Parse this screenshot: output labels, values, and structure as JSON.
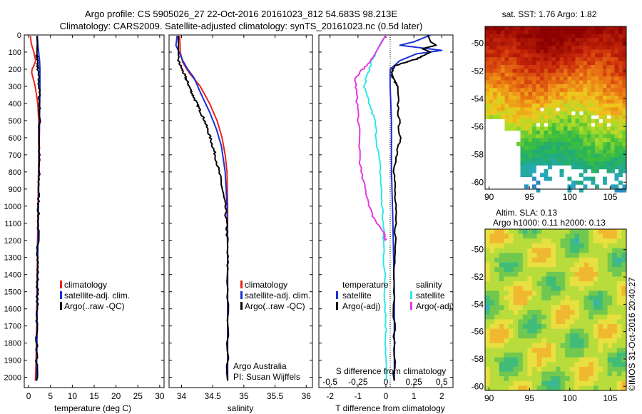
{
  "header": {
    "line1": "Argo profile: CS 5905026_27 22-Oct-2016 20161023_812 54.683S 98.213E",
    "line2": "Climatology: CARS2009. Satellite-adjusted climatology: synTS_20161023.nc (0.5d later)"
  },
  "colors": {
    "climatology": "#e8251b",
    "satellite": "#1c2fd6",
    "argo": "#000000",
    "sal_satellite": "#2ee8e8",
    "sal_argo": "#e638e6"
  },
  "chart_data": [
    {
      "type": "line",
      "panel": "temperature",
      "xlabel": "temperature (deg C)",
      "xlim": [
        -1,
        31
      ],
      "xticks": [
        0,
        5,
        10,
        15,
        20,
        25,
        30
      ],
      "ylim": [
        2060,
        0
      ],
      "yticks": [
        0,
        100,
        200,
        300,
        400,
        500,
        600,
        700,
        800,
        900,
        1000,
        1100,
        1200,
        1300,
        1400,
        1500,
        1600,
        1700,
        1800,
        1900,
        2000
      ],
      "legend": [
        "climatology",
        "satellite-adj. clim.",
        "Argo(..raw -QC)"
      ],
      "series": [
        {
          "name": "climatology",
          "color": "#e8251b",
          "x": [
            0.4,
            0.6,
            1.2,
            1.6,
            1.2,
            0.8,
            0.7,
            1.0,
            1.5,
            2.1,
            2.3,
            2.3,
            2.2,
            2.1,
            2.0,
            1.9,
            1.85,
            1.75,
            1.65,
            1.55
          ],
          "y": [
            5,
            50,
            100,
            150,
            180,
            200,
            220,
            250,
            300,
            400,
            500,
            700,
            900,
            1100,
            1300,
            1500,
            1700,
            1850,
            1950,
            2020
          ]
        },
        {
          "name": "satellite-adj. clim.",
          "color": "#1c2fd6",
          "x": [
            2.0,
            2.1,
            2.3,
            2.5,
            2.6,
            2.6,
            2.5,
            2.4,
            2.3,
            2.2,
            2.1,
            2.0,
            1.95,
            1.8
          ],
          "y": [
            5,
            50,
            100,
            150,
            200,
            300,
            500,
            700,
            900,
            1100,
            1300,
            1500,
            1700,
            2020
          ]
        },
        {
          "name": "Argo(..raw -QC)",
          "color": "#000000",
          "x": [
            1.9,
            2.0,
            1.9,
            2.0,
            2.1,
            2.4,
            2.5,
            2.4,
            2.3,
            2.2,
            2.1,
            2.0,
            1.9,
            1.8
          ],
          "y": [
            5,
            50,
            100,
            150,
            200,
            300,
            450,
            700,
            900,
            1100,
            1300,
            1500,
            1700,
            2020
          ]
        }
      ]
    },
    {
      "type": "line",
      "panel": "salinity",
      "xlabel": "salinity",
      "xlim": [
        33.8,
        36.1
      ],
      "xticks": [
        34,
        34.5,
        35,
        35.5,
        36
      ],
      "xtick_labels": [
        "34",
        "34.5",
        "35",
        "35.5",
        "36"
      ],
      "ylim": [
        2060,
        0
      ],
      "legend": [
        "climatology",
        "satellite-adj. clim.",
        "Argo(..raw -QC)"
      ],
      "annotation": [
        "Argo Australia",
        "PI: Susan Wijffels"
      ],
      "series": [
        {
          "name": "climatology",
          "color": "#e8251b",
          "x": [
            33.97,
            33.98,
            34.02,
            34.12,
            34.3,
            34.45,
            34.57,
            34.65,
            34.7,
            34.73,
            34.74,
            34.74,
            34.74,
            34.74
          ],
          "y": [
            5,
            100,
            160,
            220,
            300,
            400,
            500,
            600,
            700,
            800,
            1000,
            1300,
            1700,
            2020
          ]
        },
        {
          "name": "satellite-adj. clim.",
          "color": "#1c2fd6",
          "x": [
            33.93,
            33.91,
            33.96,
            34.02,
            34.1,
            34.2,
            34.32,
            34.45,
            34.56,
            34.64,
            34.7,
            34.73,
            34.74,
            34.74,
            34.74
          ],
          "y": [
            5,
            60,
            100,
            150,
            200,
            250,
            350,
            450,
            550,
            650,
            800,
            1000,
            1300,
            1700,
            2020
          ]
        },
        {
          "name": "Argo(..raw -QC)",
          "color": "#000000",
          "x": [
            33.95,
            33.95,
            34.03,
            34.1,
            34.18,
            34.27,
            34.37,
            34.46,
            34.54,
            34.63,
            34.7,
            34.73,
            34.74,
            34.74
          ],
          "y": [
            5,
            150,
            220,
            280,
            350,
            420,
            500,
            600,
            700,
            850,
            1000,
            1150,
            1400,
            2020
          ]
        }
      ]
    },
    {
      "type": "line",
      "panel": "difference",
      "xlabel": "T difference from climatology",
      "xlabel_top": "S difference from climatology",
      "xlim": [
        -2.4,
        2.4
      ],
      "xticks": [
        -2,
        -1,
        0,
        1,
        2
      ],
      "sal_xticks": [
        -0.5,
        -0.25,
        0,
        0.25,
        0.5
      ],
      "sal_xtick_labels": [
        "-0.5",
        "-0.25",
        "0",
        "0.25",
        "0.5"
      ],
      "ylim": [
        2060,
        0
      ],
      "legend_temperature": {
        "title": "temperature",
        "entries": [
          "satellite",
          "Argo(-adj)"
        ]
      },
      "legend_salinity": {
        "title": "salinity",
        "entries": [
          "satellite",
          "Argo(-adj)"
        ]
      },
      "series": [
        {
          "name": "temperature satellite",
          "color": "#1c2fd6",
          "x": [
            1.6,
            1.0,
            0.5,
            1.0,
            2.0,
            1.1,
            0.5,
            0.15,
            0.15,
            0.2,
            0.2,
            0.25,
            0.3,
            0.3
          ],
          "y": [
            0,
            40,
            60,
            70,
            90,
            110,
            150,
            200,
            300,
            500,
            800,
            1100,
            1500,
            2020
          ]
        },
        {
          "name": "temperature Argo(-adj)",
          "color": "#000000",
          "x": [
            1.5,
            1.6,
            1.8,
            1.3,
            1.6,
            1.1,
            0.3,
            0.2,
            0.4,
            0.5,
            0.3,
            0.35,
            0.3,
            0.3
          ],
          "y": [
            0,
            40,
            60,
            80,
            100,
            140,
            180,
            230,
            300,
            600,
            800,
            1100,
            1500,
            2020
          ]
        },
        {
          "name": "salinity satellite",
          "color": "#2ee8e8",
          "x": [
            0.0,
            -0.2,
            -0.5,
            -0.8,
            -0.4,
            -0.2,
            -0.1,
            -0.05,
            0.0,
            0.0
          ],
          "y": [
            0,
            50,
            150,
            300,
            500,
            800,
            1100,
            1400,
            1700,
            2020
          ]
        },
        {
          "name": "salinity Argo(-adj)",
          "color": "#e638e6",
          "x": [
            0.0,
            -0.5,
            -1.1,
            -1.0,
            -0.9,
            -0.5,
            -0.1,
            0.0
          ],
          "y": [
            0,
            140,
            250,
            450,
            800,
            1050,
            1150,
            1200
          ]
        }
      ]
    },
    {
      "type": "heatmap",
      "panel": "sat-sst",
      "title": "sat. SST: 1.76 Argo: 1.82",
      "xticks": [
        90,
        95,
        100,
        105
      ],
      "yticks": [
        -50,
        -52,
        -54,
        -56,
        -58,
        -60
      ],
      "xlim": [
        89.5,
        107
      ],
      "ylim": [
        -60.5,
        -48.8
      ]
    },
    {
      "type": "heatmap",
      "panel": "altim-sla",
      "title": [
        "Altim. SLA: 0.13",
        "Argo h1000: 0.11 h2000: 0.13"
      ],
      "xticks": [
        90,
        95,
        100,
        105
      ],
      "yticks": [
        -50,
        -52,
        -54,
        -56,
        -58,
        -60
      ],
      "xlim": [
        89.5,
        107
      ],
      "ylim": [
        -60.3,
        -48.5
      ]
    }
  ],
  "stamp": "©IMOS 31-Oct-2016 20:40:27"
}
